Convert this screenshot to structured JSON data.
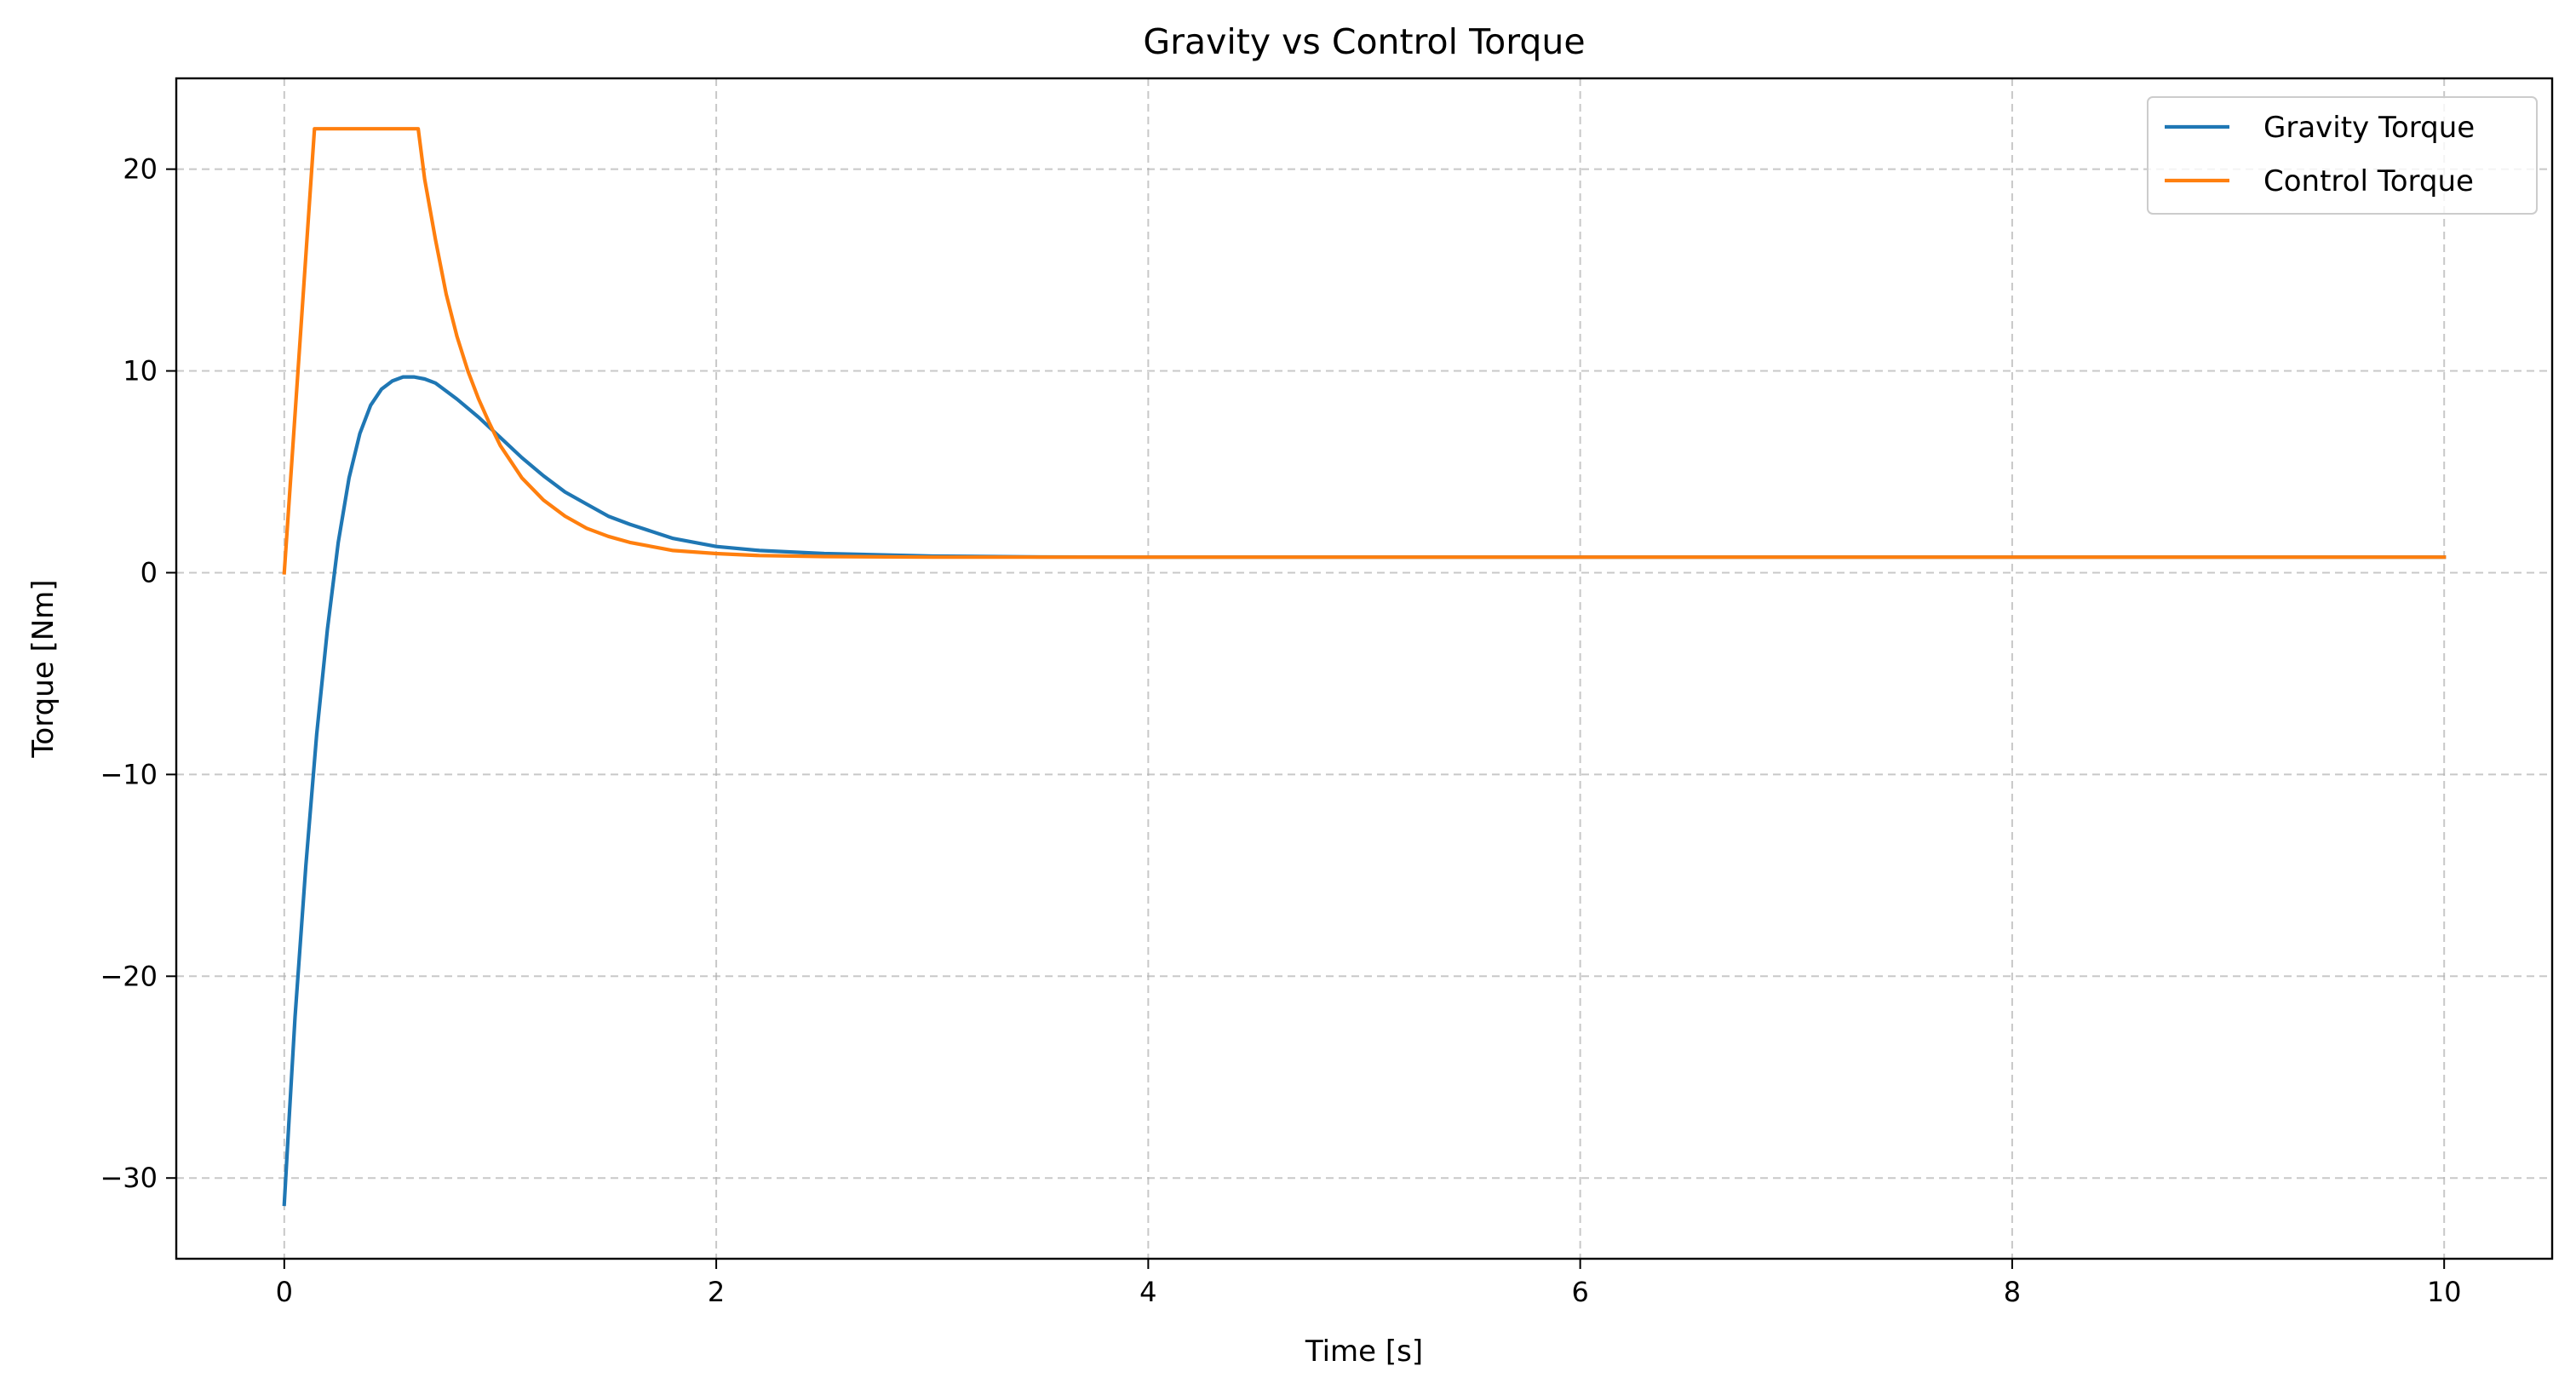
{
  "chart_data": {
    "type": "line",
    "title": "Gravity vs Control Torque",
    "xlabel": "Time [s]",
    "ylabel": "Torque [Nm]",
    "xlim": [
      -0.5,
      10.5
    ],
    "ylim": [
      -34,
      24.5
    ],
    "xticks": [
      0,
      2,
      4,
      6,
      8,
      10
    ],
    "yticks": [
      -30,
      -20,
      -10,
      0,
      10,
      20
    ],
    "xtick_labels": [
      "0",
      "2",
      "4",
      "6",
      "8",
      "10"
    ],
    "ytick_labels": [
      "−30",
      "−20",
      "−10",
      "0",
      "10",
      "20"
    ],
    "grid": true,
    "legend_position": "top-right",
    "series": [
      {
        "name": "Gravity Torque",
        "color": "#1f77b4",
        "x": [
          0,
          0.02,
          0.05,
          0.1,
          0.15,
          0.2,
          0.25,
          0.3,
          0.35,
          0.4,
          0.45,
          0.5,
          0.55,
          0.6,
          0.65,
          0.7,
          0.75,
          0.8,
          0.9,
          1.0,
          1.1,
          1.2,
          1.3,
          1.4,
          1.5,
          1.6,
          1.8,
          2.0,
          2.2,
          2.5,
          3.0,
          3.5,
          4.0,
          5.0,
          6.0,
          7.0,
          8.0,
          9.0,
          10.0
        ],
        "y": [
          -31.3,
          -27.5,
          -22.0,
          -14.5,
          -8.0,
          -2.8,
          1.5,
          4.7,
          6.9,
          8.3,
          9.1,
          9.5,
          9.7,
          9.7,
          9.6,
          9.4,
          9.0,
          8.6,
          7.7,
          6.7,
          5.7,
          4.8,
          4.0,
          3.4,
          2.8,
          2.4,
          1.7,
          1.3,
          1.1,
          0.95,
          0.82,
          0.78,
          0.77,
          0.77,
          0.77,
          0.77,
          0.77,
          0.77,
          0.77
        ]
      },
      {
        "name": "Control Torque",
        "color": "#ff7f0e",
        "x": [
          0,
          0.14,
          0.3,
          0.45,
          0.62,
          0.65,
          0.7,
          0.75,
          0.8,
          0.85,
          0.9,
          0.95,
          1.0,
          1.1,
          1.2,
          1.3,
          1.4,
          1.5,
          1.6,
          1.8,
          2.0,
          2.2,
          2.5,
          3.0,
          4.0,
          5.0,
          6.0,
          7.0,
          8.0,
          9.0,
          10.0
        ],
        "y": [
          0,
          22,
          22,
          22,
          22,
          19.5,
          16.5,
          13.8,
          11.7,
          10.0,
          8.6,
          7.4,
          6.3,
          4.7,
          3.6,
          2.8,
          2.2,
          1.8,
          1.5,
          1.1,
          0.95,
          0.85,
          0.8,
          0.77,
          0.77,
          0.77,
          0.77,
          0.77,
          0.77,
          0.77,
          0.77
        ]
      }
    ]
  }
}
